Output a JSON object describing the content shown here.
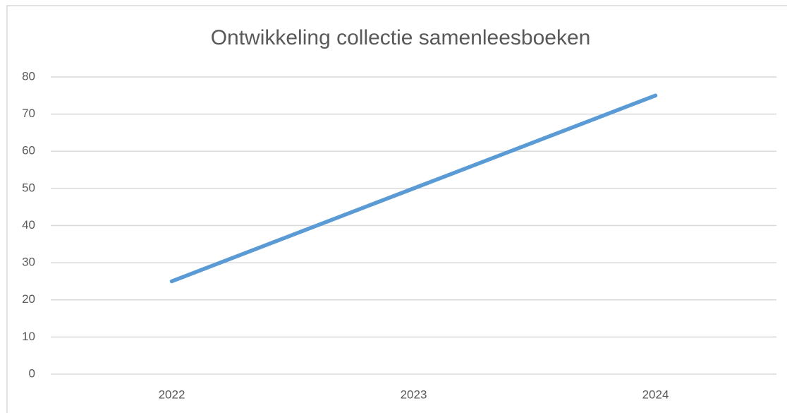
{
  "chart_data": {
    "type": "line",
    "title": "Ontwikkeling collectie samenleesboeken",
    "categories": [
      "2022",
      "2023",
      "2024"
    ],
    "values": [
      25,
      50,
      75
    ],
    "color": "#5b9bd5",
    "ylim": [
      0,
      80
    ],
    "yticks": [
      0,
      10,
      20,
      30,
      40,
      50,
      60,
      70,
      80
    ],
    "grid": true
  }
}
